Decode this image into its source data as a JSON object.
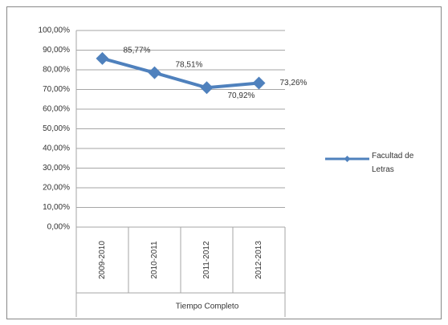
{
  "chart_data": {
    "type": "line",
    "categories": [
      "2009-2010",
      "2010-2011",
      "2011-2012",
      "2012-2013"
    ],
    "group_label": "Tiempo Completo",
    "series": [
      {
        "name": "Facultad de Letras",
        "color": "#4f81bd",
        "values": [
          85.77,
          78.51,
          70.92,
          73.26
        ],
        "value_labels": [
          "85,77%",
          "78,51%",
          "70,92%",
          "73,26%"
        ]
      }
    ],
    "ylim": [
      0,
      100
    ],
    "yticks": [
      {
        "value": 0,
        "label": "0,00%"
      },
      {
        "value": 10,
        "label": "10,00%"
      },
      {
        "value": 20,
        "label": "20,00%"
      },
      {
        "value": 30,
        "label": "30,00%"
      },
      {
        "value": 40,
        "label": "40,00%"
      },
      {
        "value": 50,
        "label": "50,00%"
      },
      {
        "value": 60,
        "label": "60,00%"
      },
      {
        "value": 70,
        "label": "70,00%"
      },
      {
        "value": 80,
        "label": "80,00%"
      },
      {
        "value": 90,
        "label": "90,00%"
      },
      {
        "value": 100,
        "label": "100,00%"
      }
    ],
    "grid": true,
    "legend": "right"
  }
}
